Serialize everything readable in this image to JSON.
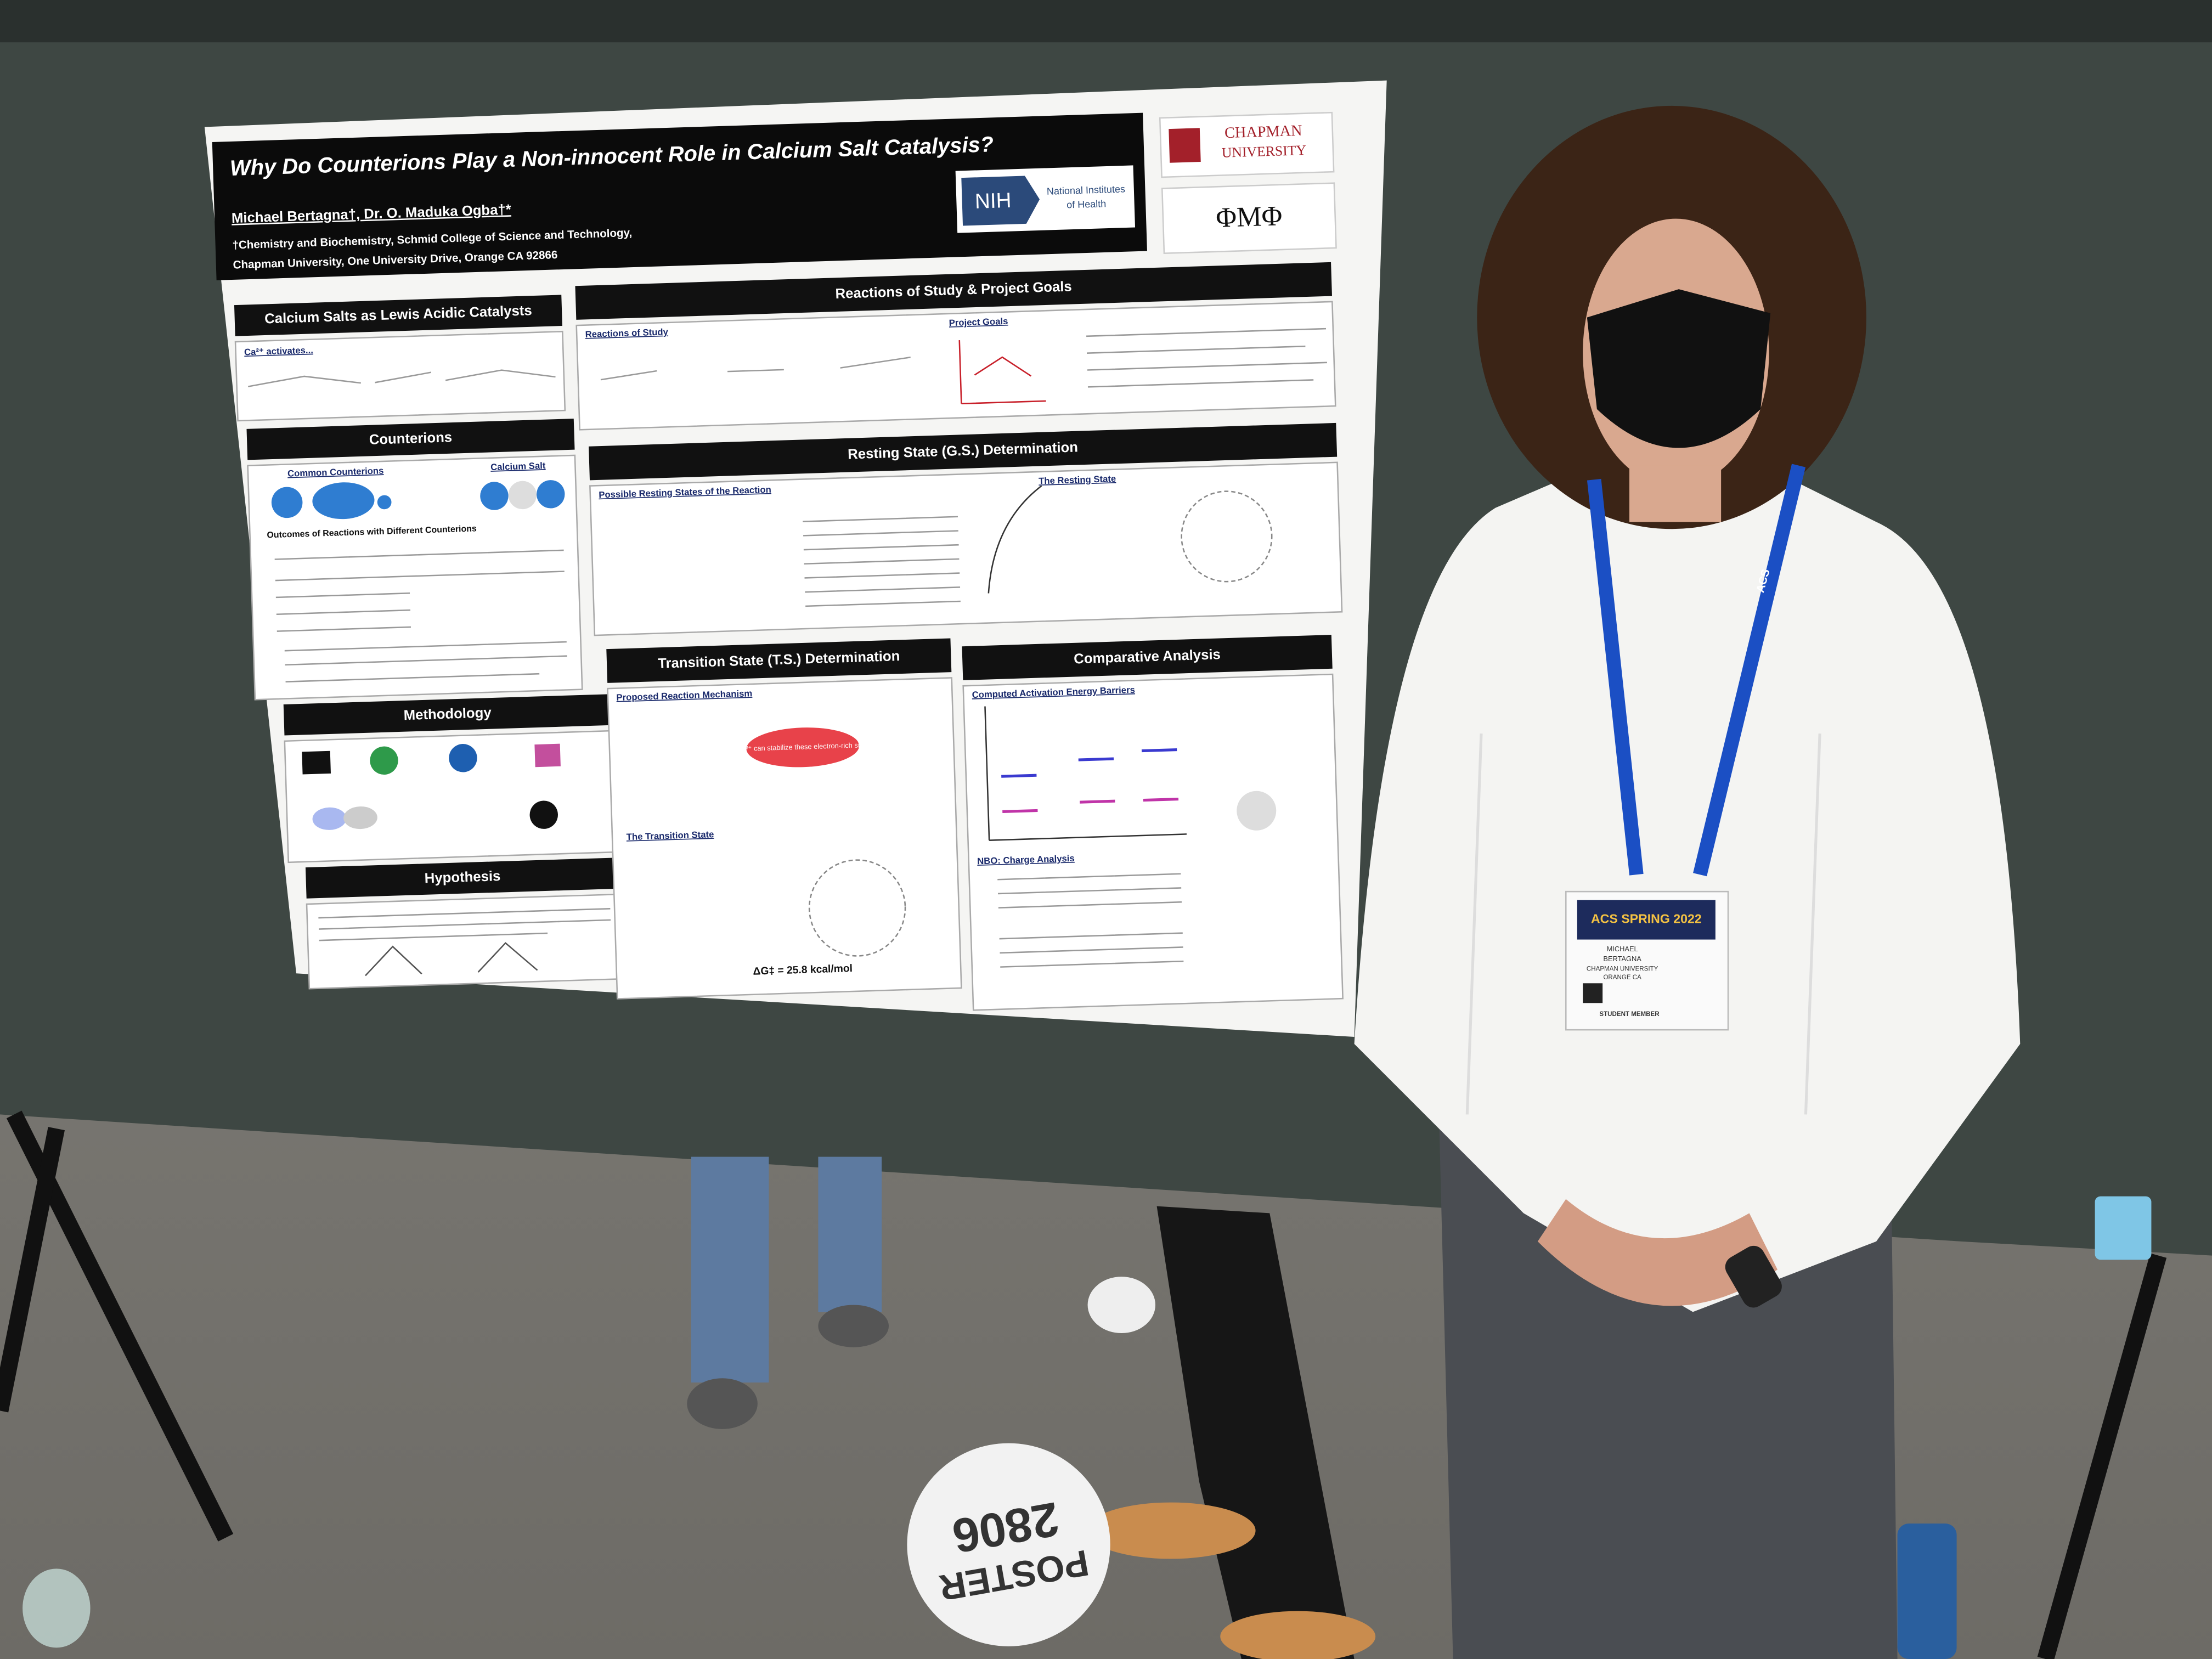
{
  "poster": {
    "title": "Why Do Counterions Play a Non-innocent Role in Calcium Salt Catalysis?",
    "authors": "Michael Bertagna†, Dr. O. Maduka Ogba†*",
    "affiliation": [
      "†Chemistry and Biochemistry, Schmid College of Science and Technology,",
      "Chapman University, One University Drive, Orange CA 92866"
    ],
    "logos": {
      "nih": "NIH",
      "nih_name": [
        "National Institutes",
        "of Health"
      ],
      "chapman": [
        "CHAPMAN",
        "UNIVERSITY"
      ],
      "fraternity": "ΦΜΦ"
    },
    "sections": {
      "calcium_salts": "Calcium Salts as Lewis Acidic Catalysts",
      "counterions": "Counterions",
      "methodology": "Methodology",
      "hypothesis": "Hypothesis",
      "reactions": "Reactions of Study & Project Goals",
      "resting_state": "Resting State (G.S.) Determination",
      "transition_state": "Transition State (T.S.) Determination",
      "comparative": "Comparative Analysis"
    },
    "subheads": {
      "ca_activates": "Ca²⁺ activates...",
      "common_counterions": "Common Counterions",
      "calcium_salt": "Calcium Salt",
      "outcomes": "Outcomes of Reactions with Different Counterions",
      "reactions_of_study": "Reactions of Study",
      "project_goals": "Project Goals",
      "possible_resting": "Possible Resting States of the Reaction",
      "the_resting_state": "The Resting State",
      "proposed_mechanism": "Proposed Reaction Mechanism",
      "the_transition_state": "The Transition State",
      "barriers": "Computed Activation Energy Barriers",
      "nbo": "NBO: Charge Analysis",
      "ca_stabilize": "Ca²⁺ can stabilize these electron-rich sites",
      "delta_g": "ΔG‡ = 25.8 kcal/mol"
    }
  },
  "badge": {
    "event": "ACS SPRING 2022",
    "name": [
      "MICHAEL",
      "BERTAGNA"
    ],
    "org": "CHAPMAN UNIVERSITY",
    "location": "ORANGE CA",
    "role": "STUDENT MEMBER"
  },
  "lanyard": "ACS",
  "floor_sign": [
    "POSTER",
    "2806"
  ]
}
